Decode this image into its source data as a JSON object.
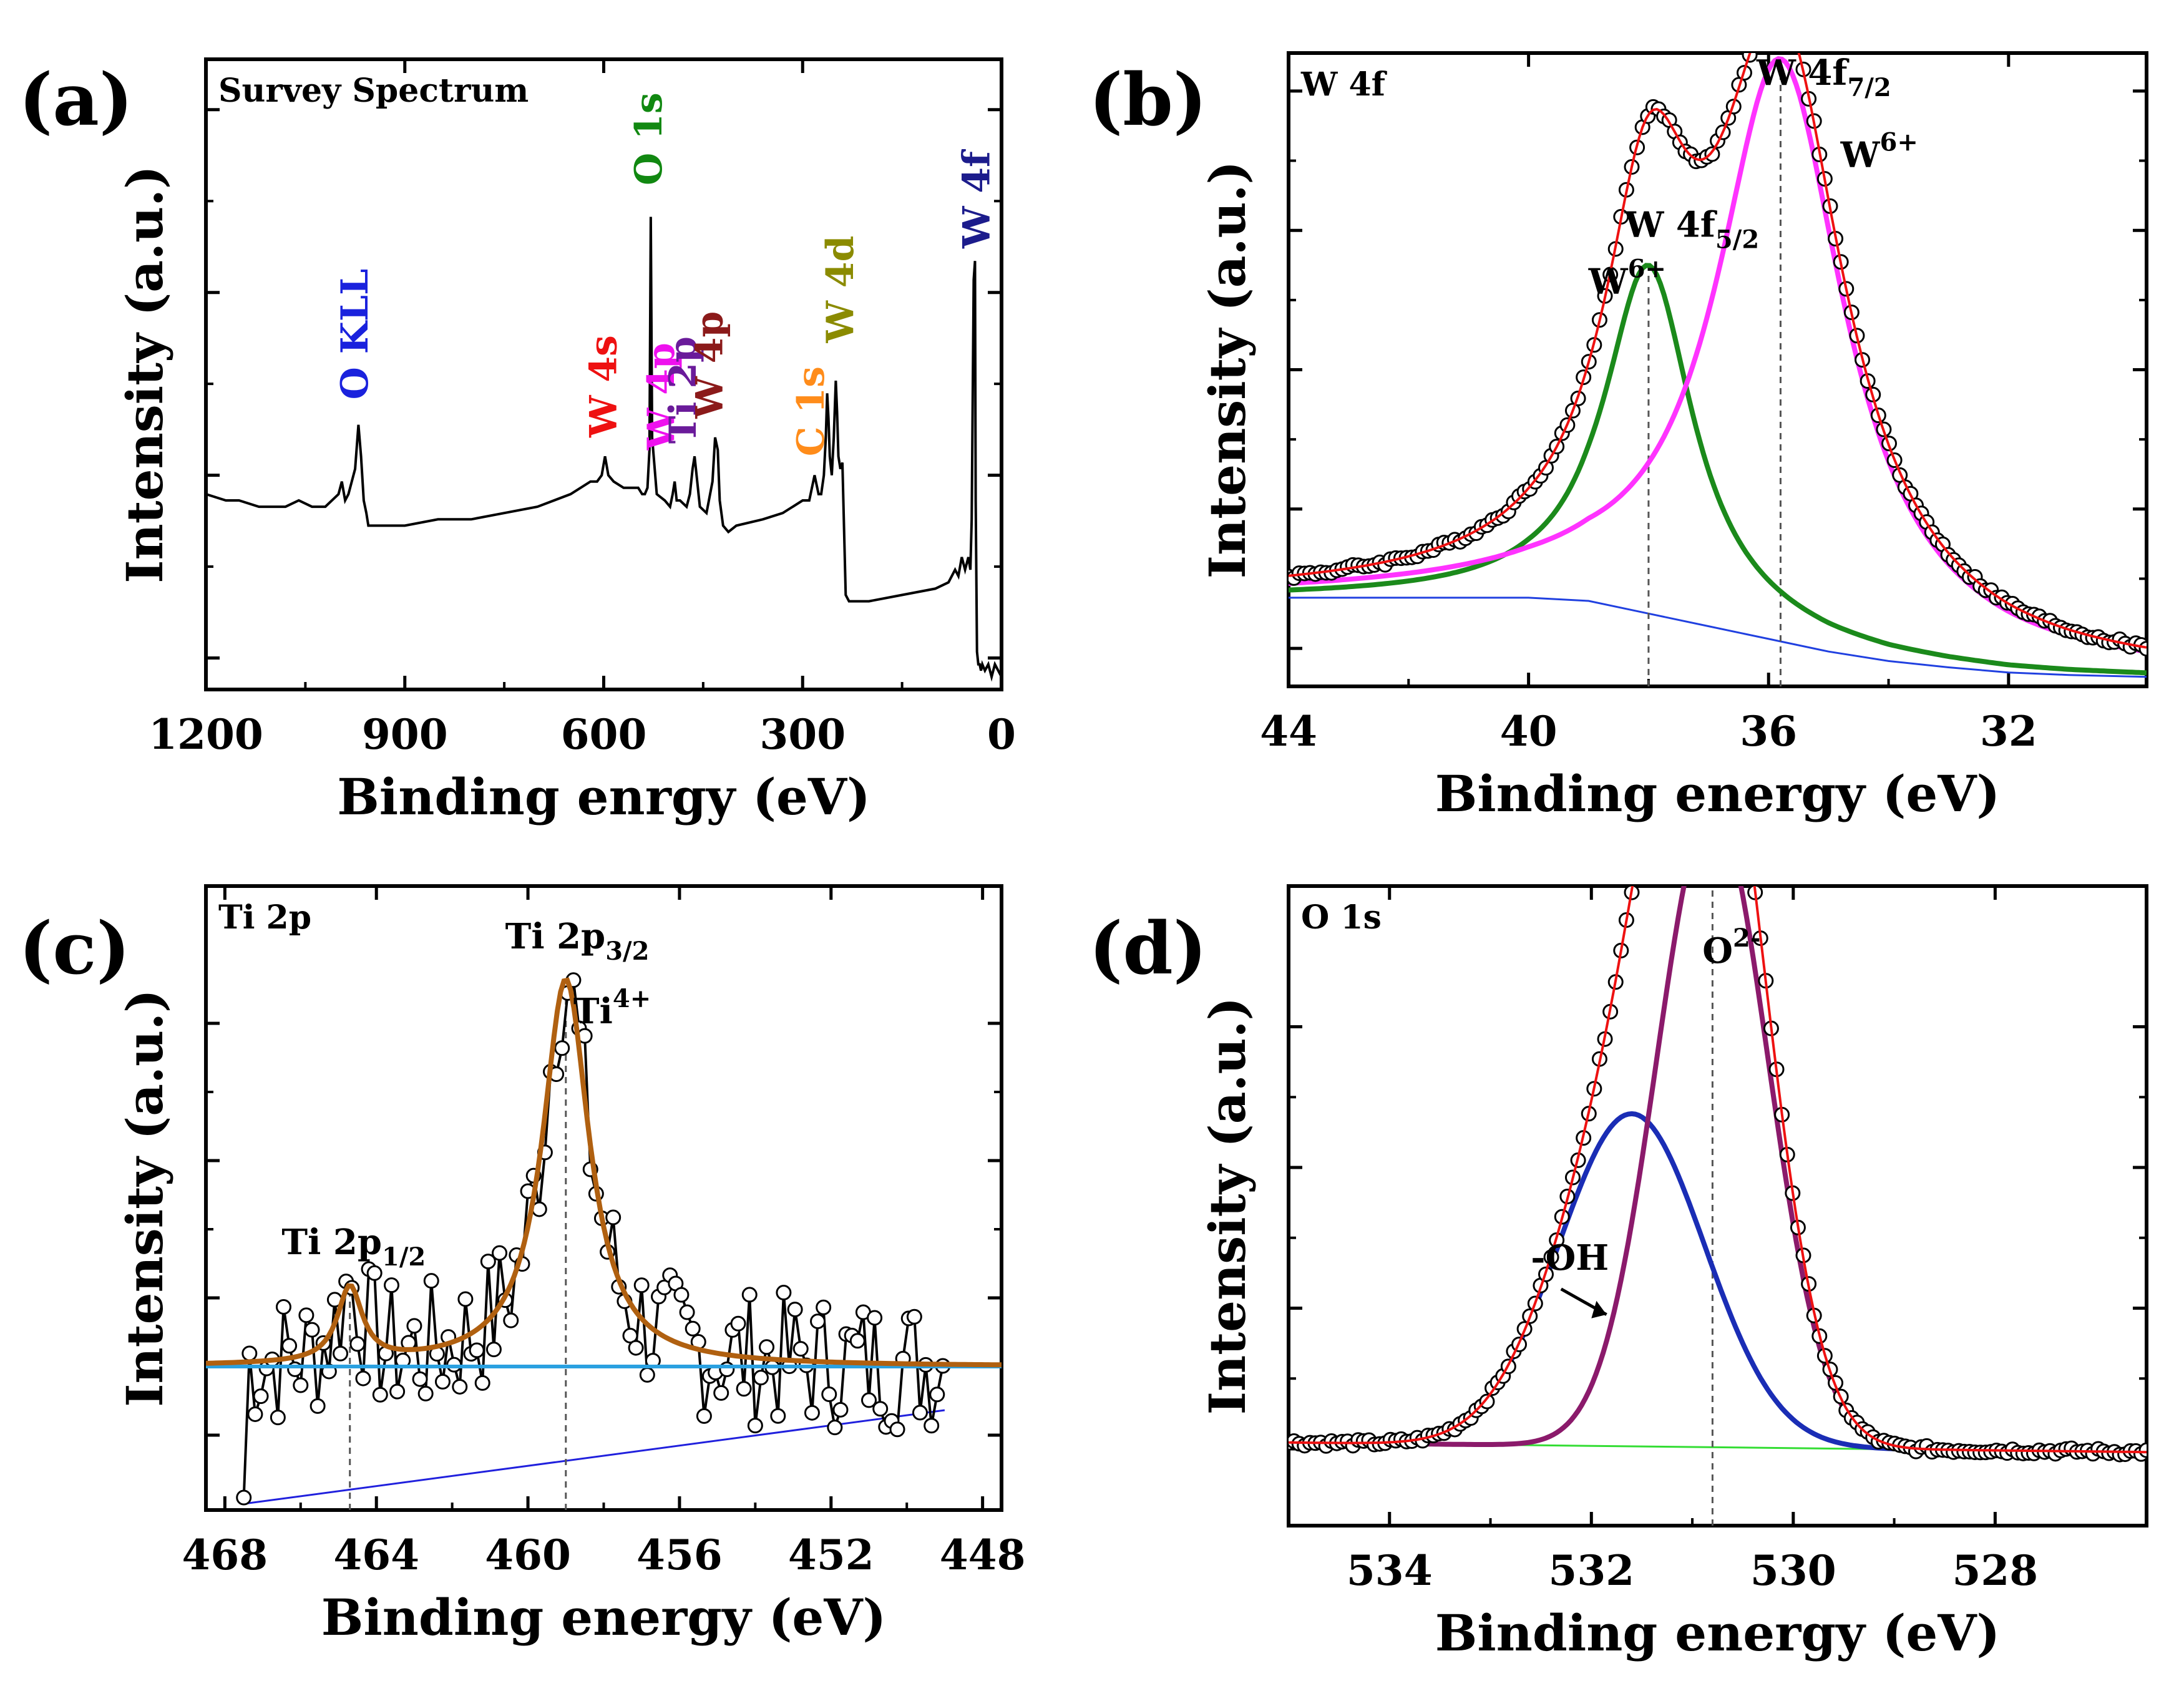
{
  "figure": {
    "description_free": true
  },
  "chart_data": [
    {
      "panel_label": "(a)",
      "type": "line",
      "title": "Survey Spectrum",
      "xlabel": "Binding enrgy (eV)",
      "ylabel": "Intensity (a.u.)",
      "xlim": [
        1200,
        0
      ],
      "ylim": [
        0,
        1
      ],
      "x_ticks": [
        1200,
        900,
        600,
        300,
        0
      ],
      "x_tick_labels": [
        "1200",
        "900",
        "600",
        "300",
        "0"
      ],
      "y_ticks": [
        0.05,
        0.34,
        0.63,
        0.92
      ],
      "series": [
        {
          "name": "Survey",
          "color": "#000000",
          "x": [
            1200,
            1170,
            1150,
            1120,
            1080,
            1060,
            1040,
            1020,
            1000,
            995,
            990,
            985,
            975,
            970,
            966,
            962,
            958,
            955,
            950,
            900,
            850,
            800,
            750,
            700,
            650,
            620,
            610,
            603,
            598,
            593,
            585,
            570,
            560,
            548,
            542,
            538,
            534,
            531,
            529,
            527,
            520,
            508,
            500,
            496,
            493,
            490,
            485,
            475,
            470,
            466,
            463,
            460,
            455,
            445,
            436,
            432,
            428,
            425,
            420,
            412,
            400,
            360,
            330,
            300,
            290,
            284,
            282,
            276,
            272,
            268,
            265,
            263,
            261,
            259,
            257,
            256,
            253,
            250,
            248,
            246,
            243,
            240,
            235,
            230,
            200,
            150,
            100,
            80,
            70,
            65,
            60,
            55,
            50,
            47,
            45,
            42,
            40,
            39,
            37,
            35,
            33,
            31,
            29,
            25,
            20,
            15,
            10,
            5,
            0
          ],
          "y": [
            0.31,
            0.3,
            0.3,
            0.29,
            0.29,
            0.3,
            0.29,
            0.29,
            0.31,
            0.33,
            0.3,
            0.31,
            0.35,
            0.42,
            0.37,
            0.3,
            0.28,
            0.26,
            0.26,
            0.26,
            0.27,
            0.27,
            0.28,
            0.29,
            0.31,
            0.33,
            0.33,
            0.34,
            0.37,
            0.34,
            0.33,
            0.32,
            0.32,
            0.32,
            0.31,
            0.31,
            0.32,
            0.38,
            0.75,
            0.4,
            0.31,
            0.3,
            0.29,
            0.31,
            0.33,
            0.3,
            0.3,
            0.29,
            0.31,
            0.35,
            0.37,
            0.34,
            0.29,
            0.28,
            0.33,
            0.4,
            0.38,
            0.3,
            0.26,
            0.25,
            0.26,
            0.27,
            0.28,
            0.3,
            0.3,
            0.33,
            0.34,
            0.31,
            0.31,
            0.34,
            0.4,
            0.47,
            0.43,
            0.37,
            0.35,
            0.34,
            0.4,
            0.49,
            0.44,
            0.37,
            0.35,
            0.36,
            0.15,
            0.14,
            0.14,
            0.15,
            0.16,
            0.17,
            0.19,
            0.18,
            0.21,
            0.19,
            0.21,
            0.19,
            0.27,
            0.65,
            0.68,
            0.3,
            0.06,
            0.04,
            0.04,
            0.03,
            0.04,
            0.03,
            0.04,
            0.02,
            0.04,
            0.03,
            0.02
          ]
        }
      ],
      "annotations": [
        {
          "text": "O KLL",
          "x": 975,
          "y": 0.46,
          "color": "#1a22dd"
        },
        {
          "text": "W 4s",
          "x": 600,
          "y": 0.4,
          "color": "#ee1111"
        },
        {
          "text": "O 1s",
          "x": 532,
          "y": 0.8,
          "color": "#118811"
        },
        {
          "text": "W 4p",
          "x": 513,
          "y": 0.38,
          "color": "#ee11ee"
        },
        {
          "text": "Ti 2p",
          "x": 480,
          "y": 0.39,
          "color": "#6a1b9a"
        },
        {
          "text": "W 4p",
          "x": 440,
          "y": 0.43,
          "color": "#8b1a1a"
        },
        {
          "text": "C 1s",
          "x": 287,
          "y": 0.37,
          "color": "#ff8c1a"
        },
        {
          "text": "W 4d",
          "x": 243,
          "y": 0.55,
          "color": "#8b8b00"
        },
        {
          "text": "W 4f",
          "x": 37,
          "y": 0.7,
          "color": "#1c1c8c"
        }
      ]
    },
    {
      "panel_label": "(b)",
      "type": "line",
      "title": "W 4f",
      "xlabel": "Binding energy (eV)",
      "ylabel": "Intensity (a.u.)",
      "xlim": [
        44,
        29.7
      ],
      "ylim": [
        0,
        1
      ],
      "x_ticks": [
        44,
        40,
        36,
        32
      ],
      "x_tick_labels": [
        "44",
        "40",
        "36",
        "32"
      ],
      "y_ticks": [
        0.06,
        0.28,
        0.5,
        0.72,
        0.94
      ],
      "peaks": [
        {
          "name": "W 4f5/2 (W6+)",
          "center": 38.0,
          "height": 0.55,
          "hwhm": 0.9,
          "color": "#1b8a1b"
        },
        {
          "name": "W 4f7/2 (W6+)",
          "center": 35.8,
          "height": 0.92,
          "hwhm": 1.3,
          "color": "#ff33ff"
        }
      ],
      "background": {
        "color": "#2040e0",
        "x": [
          44,
          40,
          39,
          38,
          37,
          36,
          35,
          34,
          33,
          32,
          31,
          29.7
        ],
        "y": [
          0.14,
          0.14,
          0.135,
          0.115,
          0.095,
          0.075,
          0.055,
          0.04,
          0.03,
          0.022,
          0.018,
          0.015
        ]
      },
      "envelope_color": "#ee1111",
      "guides": [
        38.0,
        35.8
      ],
      "annotations": [
        {
          "text": "W",
          "sub": "",
          "x": 36.2,
          "y": 0.95,
          "kind": "W 4f",
          "label": "W 4f",
          "suffix": "7/2"
        },
        {
          "text": "W",
          "x": 38.4,
          "y": 0.71,
          "label": "W 4f",
          "suffix": "5/2"
        },
        {
          "text": "W",
          "x": 39.0,
          "y": 0.62,
          "label": "W",
          "suffix": "6+"
        },
        {
          "text": "W",
          "x": 34.8,
          "y": 0.82,
          "label": "W",
          "suffix": "6+"
        }
      ]
    },
    {
      "panel_label": "(c)",
      "type": "scatter",
      "title": "Ti 2p",
      "xlabel": "Binding energy (eV)",
      "ylabel": "Intensity (a.u.)",
      "xlim": [
        468.5,
        447.5
      ],
      "ylim": [
        0,
        1
      ],
      "x_ticks": [
        468,
        464,
        460,
        456,
        452,
        448
      ],
      "x_tick_labels": [
        "468",
        "464",
        "460",
        "456",
        "452",
        "448"
      ],
      "y_ticks": [
        0.12,
        0.34,
        0.56,
        0.78
      ],
      "peaks": [
        {
          "name": "Ti 2p1/2",
          "center": 464.7,
          "height": 0.12,
          "hwhm": 0.4,
          "color": "#b06010"
        },
        {
          "name": "Ti 2p3/2 (Ti4+)",
          "center": 459.0,
          "height": 0.62,
          "hwhm": 0.75,
          "color": "#b06010"
        }
      ],
      "baseline": {
        "y": 0.23,
        "color": "#2aa0e0"
      },
      "background": {
        "color": "#2020dd",
        "x": [
          467.5,
          449
        ],
        "y": [
          0.01,
          0.16
        ]
      },
      "guides": [
        464.7,
        459.0
      ],
      "annotations": [
        {
          "label": "Ti 2p",
          "suffix": "3/2",
          "x": 460.6,
          "y": 0.9
        },
        {
          "label": "Ti",
          "suffix": "4+",
          "x": 458.8,
          "y": 0.78
        },
        {
          "label": "Ti 2p",
          "suffix": "1/2",
          "x": 466.5,
          "y": 0.41
        }
      ]
    },
    {
      "panel_label": "(d)",
      "type": "line",
      "title": "O 1s",
      "xlabel": "Binding energy (eV)",
      "ylabel": "Intensity (a.u.)",
      "xlim": [
        535,
        526.5
      ],
      "ylim": [
        0,
        1
      ],
      "x_ticks": [
        534,
        532,
        530,
        528
      ],
      "x_tick_labels": [
        "534",
        "532",
        "530",
        "528"
      ],
      "y_ticks": [
        0.12,
        0.34,
        0.56,
        0.78
      ],
      "peaks": [
        {
          "name": "-OH",
          "center": 531.6,
          "height": 0.52,
          "hwhm": 0.85,
          "color": "#1a2db5",
          "shape": "gauss"
        },
        {
          "name": "O2-",
          "center": 530.8,
          "height": 1.0,
          "hwhm": 0.65,
          "color": "#8b1a6b",
          "shape": "gauss"
        }
      ],
      "background": {
        "color": "#33dd33",
        "x": [
          535,
          526.5
        ],
        "y": [
          0.13,
          0.115
        ]
      },
      "envelope_color": "#ee1111",
      "guides": [
        530.8
      ],
      "annotations": [
        {
          "label": "O",
          "suffix": "2-",
          "x": 530.9,
          "y": 0.88
        },
        {
          "label": "-OH",
          "suffix": "",
          "x": 532.6,
          "y": 0.4
        }
      ]
    }
  ]
}
